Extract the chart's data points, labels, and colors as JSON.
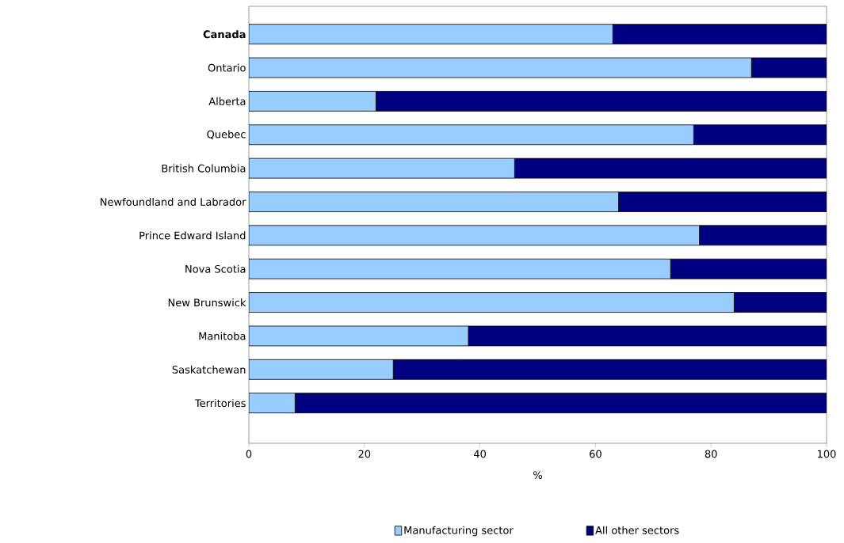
{
  "chart_data": {
    "type": "bar",
    "orientation": "horizontal",
    "stacked": true,
    "categories": [
      "**Canada**",
      "Ontario",
      "Alberta",
      "Quebec",
      "British Columbia",
      "Newfoundland and Labrador",
      "Prince Edward Island",
      "Nova Scotia",
      "New Brunswick",
      "Manitoba",
      "Saskatchewan",
      "Territories"
    ],
    "series": [
      {
        "name": "Manufacturing sector",
        "color": "#99ccff",
        "values": [
          63,
          87,
          22,
          77,
          46,
          64,
          78,
          73,
          84,
          38,
          25,
          8
        ]
      },
      {
        "name": "All other sectors",
        "color": "#000080",
        "values": [
          37,
          13,
          78,
          23,
          54,
          36,
          22,
          27,
          16,
          62,
          75,
          92
        ]
      }
    ],
    "xlabel": "%",
    "xlim": [
      0,
      100
    ],
    "xticks": [
      0,
      20,
      40,
      60,
      80,
      100
    ],
    "legend": "bottom",
    "grid": false
  }
}
